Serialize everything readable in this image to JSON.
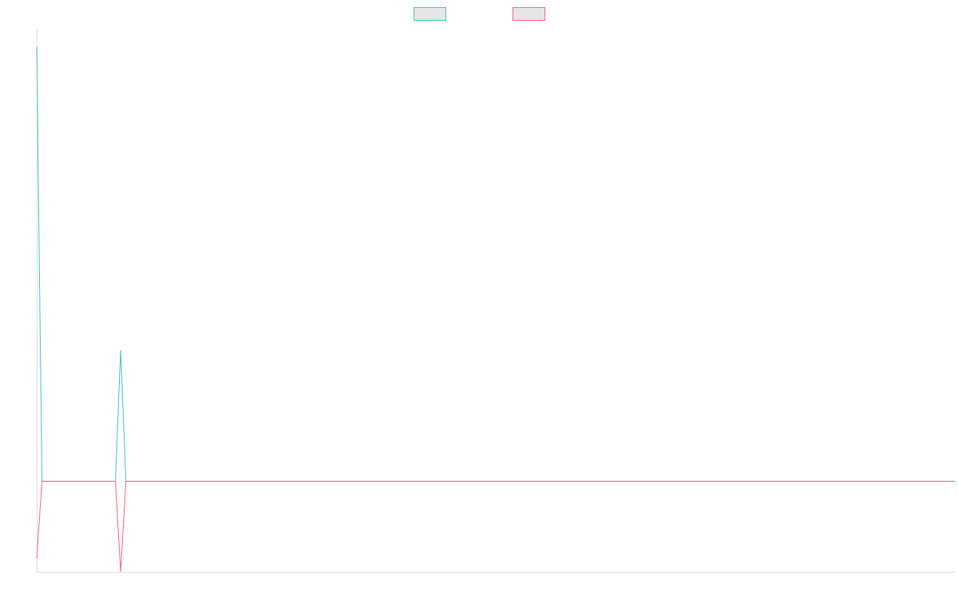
{
  "chart_data": {
    "type": "line",
    "title": "",
    "xlabel": "",
    "ylabel": "",
    "grid": false,
    "legend_position": "top-center",
    "x": [
      0,
      1,
      2,
      3,
      4,
      5,
      6,
      7,
      8,
      9,
      10,
      11,
      12,
      13,
      14,
      15,
      16,
      17,
      18,
      19,
      20,
      21,
      22,
      23,
      24,
      25,
      26,
      27,
      28,
      29,
      30,
      31,
      32,
      33,
      34,
      35,
      36,
      37,
      38,
      39,
      40,
      41,
      42,
      43,
      44,
      45,
      46,
      47,
      48,
      49,
      50,
      51,
      52,
      53,
      54,
      55,
      56,
      57,
      58,
      59,
      60,
      61,
      62,
      63,
      64,
      65,
      66,
      67,
      68,
      69,
      70,
      71,
      72,
      73,
      74,
      75,
      76,
      77,
      78,
      79,
      80,
      81,
      82,
      83,
      84,
      85,
      86,
      87,
      88,
      89,
      90,
      91,
      92,
      93,
      94,
      95,
      96,
      97,
      98,
      99,
      100,
      101,
      102,
      103,
      104,
      105,
      106,
      107,
      108,
      109,
      110,
      111,
      112,
      113,
      114,
      115,
      116,
      117,
      118,
      119,
      120,
      121,
      122,
      123,
      124,
      125,
      126,
      127,
      128,
      129,
      130,
      131,
      132,
      133,
      134,
      135,
      136,
      137,
      138,
      139,
      140,
      141,
      142,
      143,
      144,
      145,
      146,
      147,
      148,
      149,
      150,
      151,
      152,
      153,
      154,
      155,
      156,
      157,
      158,
      159,
      160,
      161,
      162,
      163,
      164,
      165,
      166,
      167,
      168,
      169,
      170,
      171,
      172,
      173,
      174,
      175
    ],
    "ylim": [
      -1,
      5
    ],
    "series": [
      {
        "name": "",
        "color": "#4bc0c0",
        "values": [
          4.8,
          0,
          0,
          0,
          0,
          0,
          0,
          0,
          0,
          0,
          0,
          0,
          0,
          0,
          0,
          0,
          1.45,
          0,
          0,
          0,
          0,
          0,
          0,
          0,
          0,
          0,
          0,
          0,
          0,
          0,
          0,
          0,
          0,
          0,
          0,
          0,
          0,
          0,
          0,
          0,
          0,
          0,
          0,
          0,
          0,
          0,
          0,
          0,
          0,
          0,
          0,
          0,
          0,
          0,
          0,
          0,
          0,
          0,
          0,
          0,
          0,
          0,
          0,
          0,
          0,
          0,
          0,
          0,
          0,
          0,
          0,
          0,
          0,
          0,
          0,
          0,
          0,
          0,
          0,
          0,
          0,
          0,
          0,
          0,
          0,
          0,
          0,
          0,
          0,
          0,
          0,
          0,
          0,
          0,
          0,
          0,
          0,
          0,
          0,
          0,
          0,
          0,
          0,
          0,
          0,
          0,
          0,
          0,
          0,
          0,
          0,
          0,
          0,
          0,
          0,
          0,
          0,
          0,
          0,
          0,
          0,
          0,
          0,
          0,
          0,
          0,
          0,
          0,
          0,
          0,
          0,
          0,
          0,
          0,
          0,
          0,
          0,
          0,
          0,
          0,
          0,
          0,
          0,
          0,
          0,
          0,
          0,
          0,
          0,
          0,
          0,
          0,
          0,
          0,
          0,
          0,
          0,
          0,
          0,
          0,
          0,
          0,
          0,
          0,
          0,
          0,
          0,
          0,
          0,
          0,
          0,
          0,
          0,
          0,
          0,
          0
        ]
      },
      {
        "name": "",
        "color": "#ff6384",
        "values": [
          -0.85,
          0,
          0,
          0,
          0,
          0,
          0,
          0,
          0,
          0,
          0,
          0,
          0,
          0,
          0,
          0,
          -1,
          0,
          0,
          0,
          0,
          0,
          0,
          0,
          0,
          0,
          0,
          0,
          0,
          0,
          0,
          0,
          0,
          0,
          0,
          0,
          0,
          0,
          0,
          0,
          0,
          0,
          0,
          0,
          0,
          0,
          0,
          0,
          0,
          0,
          0,
          0,
          0,
          0,
          0,
          0,
          0,
          0,
          0,
          0,
          0,
          0,
          0,
          0,
          0,
          0,
          0,
          0,
          0,
          0,
          0,
          0,
          0,
          0,
          0,
          0,
          0,
          0,
          0,
          0,
          0,
          0,
          0,
          0,
          0,
          0,
          0,
          0,
          0,
          0,
          0,
          0,
          0,
          0,
          0,
          0,
          0,
          0,
          0,
          0,
          0,
          0,
          0,
          0,
          0,
          0,
          0,
          0,
          0,
          0,
          0,
          0,
          0,
          0,
          0,
          0,
          0,
          0,
          0,
          0,
          0,
          0,
          0,
          0,
          0,
          0,
          0,
          0,
          0,
          0,
          0,
          0,
          0,
          0,
          0,
          0,
          0,
          0,
          0,
          0,
          0,
          0,
          0,
          0,
          0,
          0,
          0,
          0,
          0,
          0,
          0,
          0,
          0,
          0,
          0,
          0,
          0,
          0,
          0,
          0,
          0,
          0,
          0,
          0,
          0,
          0,
          0,
          0,
          0,
          0,
          0,
          0,
          0,
          0,
          0,
          0
        ]
      }
    ]
  }
}
